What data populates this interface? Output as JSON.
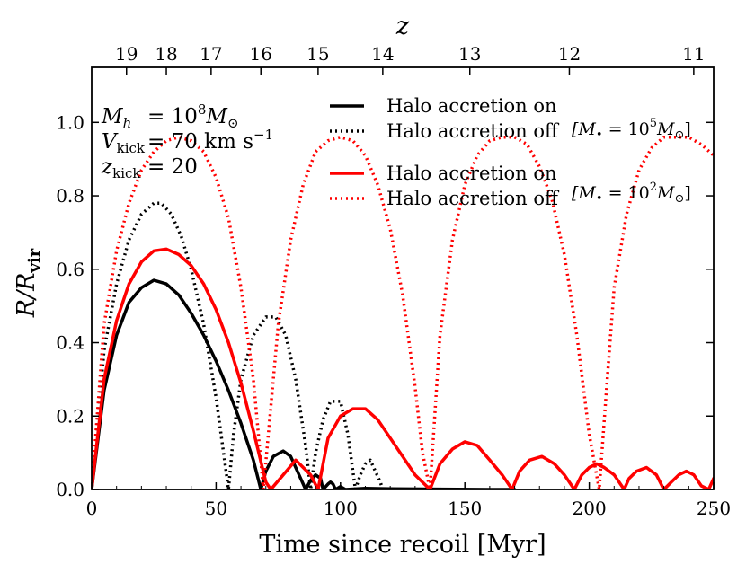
{
  "chart_data": {
    "type": "line",
    "xlabel": "Time since recoil [Myr]",
    "ylabel_main": "R/R",
    "ylabel_sub": "vir",
    "top_axis_label": "z",
    "xlim": [
      0,
      250
    ],
    "ylim": [
      0,
      1.15
    ],
    "x_ticks": [
      0,
      50,
      100,
      150,
      200,
      250
    ],
    "y_ticks": [
      0.0,
      0.2,
      0.4,
      0.6,
      0.8,
      1.0
    ],
    "y_tick_labels": [
      "0.0",
      "0.2",
      "0.4",
      "0.6",
      "0.8",
      "1.0"
    ],
    "top_ticks": [
      {
        "label": "19",
        "time": 14
      },
      {
        "label": "18",
        "time": 30
      },
      {
        "label": "17",
        "time": 48
      },
      {
        "label": "16",
        "time": 68
      },
      {
        "label": "15",
        "time": 91
      },
      {
        "label": "14",
        "time": 117
      },
      {
        "label": "13",
        "time": 152
      },
      {
        "label": "12",
        "time": 192
      },
      {
        "label": "11",
        "time": 242
      }
    ],
    "annotations": {
      "line1": {
        "lhs": "M",
        "lhs_sub": "h",
        "rhs": "= 10",
        "rhs_sup": "8",
        "rhs_tail": "M",
        "rhs_tail_sub": "⊙"
      },
      "line2": {
        "lhs": "V",
        "lhs_sub": "kick",
        "rhs": "= 70 km s",
        "rhs_sup": "−1"
      },
      "line3": {
        "lhs": "z",
        "lhs_sub": "kick",
        "rhs": "= 20"
      }
    },
    "legend": [
      {
        "label": "Halo accretion on",
        "color": "#000000",
        "dash": "solid"
      },
      {
        "label": "Halo accretion off",
        "color": "#000000",
        "dash": "dotted"
      },
      {
        "label": "Halo accretion on",
        "color": "#ff0000",
        "dash": "solid"
      },
      {
        "label": "Halo accretion off",
        "color": "#ff0000",
        "dash": "dotted"
      }
    ],
    "legend_notes": [
      {
        "pre": "[M",
        "sub": "•",
        "mid": " = 10",
        "sup": "5",
        "post": "M",
        "post_sub": "⊙",
        "end": "]"
      },
      {
        "pre": "[M",
        "sub": "•",
        "mid": " = 10",
        "sup": "2",
        "post": "M",
        "post_sub": "⊙",
        "end": "]"
      }
    ],
    "series": [
      {
        "color": "#000000",
        "dash": "solid",
        "x": [
          0,
          5,
          10,
          15,
          20,
          25,
          30,
          35,
          40,
          45,
          50,
          55,
          60,
          65,
          68,
          70,
          73,
          77,
          80,
          84,
          86,
          88,
          90,
          92,
          93,
          95,
          96,
          97,
          98,
          100,
          102,
          110,
          120,
          140,
          160,
          170
        ],
        "y": [
          0,
          0.27,
          0.42,
          0.51,
          0.55,
          0.57,
          0.56,
          0.53,
          0.48,
          0.42,
          0.35,
          0.27,
          0.18,
          0.08,
          0.0,
          0.05,
          0.09,
          0.105,
          0.09,
          0.03,
          0.0,
          0.025,
          0.04,
          0.03,
          0.0,
          0.015,
          0.02,
          0.015,
          0.0,
          0.008,
          0.0,
          0.003,
          0.002,
          0.001,
          0.0,
          0.0
        ]
      },
      {
        "color": "#000000",
        "dash": "dotted",
        "x": [
          0,
          5,
          10,
          15,
          20,
          25,
          28,
          32,
          36,
          40,
          45,
          50,
          53,
          55,
          57,
          60,
          65,
          70,
          74,
          78,
          82,
          86,
          88,
          90,
          93,
          96,
          100,
          103,
          106,
          108,
          110,
          112,
          114,
          116,
          117
        ],
        "y": [
          0,
          0.38,
          0.56,
          0.68,
          0.75,
          0.78,
          0.78,
          0.75,
          0.69,
          0.6,
          0.45,
          0.25,
          0.1,
          0.0,
          0.15,
          0.3,
          0.42,
          0.47,
          0.47,
          0.42,
          0.3,
          0.12,
          0.0,
          0.1,
          0.19,
          0.24,
          0.24,
          0.15,
          0.0,
          0.04,
          0.07,
          0.08,
          0.05,
          0.02,
          0.0
        ]
      },
      {
        "color": "#ff0000",
        "dash": "solid",
        "x": [
          0,
          5,
          10,
          15,
          20,
          25,
          30,
          35,
          40,
          45,
          50,
          55,
          60,
          65,
          70,
          72,
          77,
          82,
          88,
          91,
          95,
          100,
          105,
          110,
          115,
          120,
          125,
          130,
          136,
          140,
          145,
          150,
          155,
          160,
          165,
          169,
          172,
          176,
          181,
          186,
          190,
          194,
          197,
          200,
          203,
          206,
          210,
          214,
          216,
          219,
          223,
          227,
          230,
          233,
          236,
          239,
          242,
          245,
          248,
          250
        ],
        "y": [
          0,
          0.3,
          0.46,
          0.56,
          0.62,
          0.65,
          0.655,
          0.64,
          0.61,
          0.56,
          0.49,
          0.4,
          0.29,
          0.16,
          0.02,
          0.0,
          0.04,
          0.08,
          0.04,
          0.0,
          0.14,
          0.2,
          0.22,
          0.22,
          0.19,
          0.14,
          0.09,
          0.04,
          0.0,
          0.07,
          0.11,
          0.13,
          0.12,
          0.08,
          0.04,
          0.0,
          0.05,
          0.08,
          0.09,
          0.07,
          0.04,
          0.0,
          0.04,
          0.06,
          0.07,
          0.06,
          0.04,
          0.0,
          0.03,
          0.05,
          0.06,
          0.04,
          0.0,
          0.02,
          0.04,
          0.05,
          0.04,
          0.01,
          0.0,
          0.03
        ]
      },
      {
        "color": "#ff0000",
        "dash": "dotted",
        "x": [
          0,
          5,
          10,
          15,
          20,
          25,
          30,
          35,
          40,
          45,
          50,
          55,
          60,
          65,
          69,
          75,
          80,
          85,
          90,
          95,
          100,
          105,
          110,
          115,
          120,
          125,
          130,
          133,
          136,
          140,
          145,
          150,
          155,
          160,
          165,
          170,
          175,
          180,
          185,
          190,
          195,
          200,
          204,
          207,
          210,
          215,
          220,
          225,
          230,
          235,
          240,
          245,
          250
        ],
        "y": [
          0,
          0.45,
          0.65,
          0.78,
          0.87,
          0.92,
          0.95,
          0.96,
          0.95,
          0.92,
          0.85,
          0.74,
          0.55,
          0.3,
          0.0,
          0.45,
          0.68,
          0.83,
          0.92,
          0.95,
          0.96,
          0.95,
          0.91,
          0.83,
          0.71,
          0.53,
          0.28,
          0.1,
          0.0,
          0.42,
          0.68,
          0.83,
          0.91,
          0.95,
          0.96,
          0.96,
          0.94,
          0.88,
          0.79,
          0.64,
          0.42,
          0.15,
          0.0,
          0.28,
          0.55,
          0.75,
          0.87,
          0.93,
          0.96,
          0.96,
          0.96,
          0.94,
          0.91
        ]
      }
    ]
  }
}
